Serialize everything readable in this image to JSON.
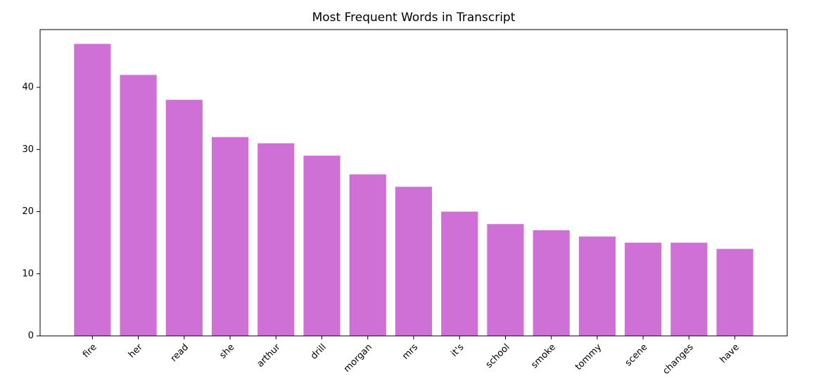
{
  "chart_data": {
    "type": "bar",
    "title": "Most Frequent Words in Transcript",
    "categories": [
      "fire",
      "her",
      "read",
      "she",
      "arthur",
      "drill",
      "morgan",
      "mrs",
      "it's",
      "school",
      "smoke",
      "tommy",
      "scene",
      "changes",
      "have"
    ],
    "values": [
      47,
      42,
      38,
      32,
      31,
      29,
      26,
      24,
      20,
      18,
      17,
      16,
      15,
      15,
      14
    ],
    "color": "#cf70d6",
    "ylim": [
      0,
      49.3
    ],
    "yticks": [
      0,
      10,
      20,
      30,
      40
    ],
    "grid": false
  }
}
